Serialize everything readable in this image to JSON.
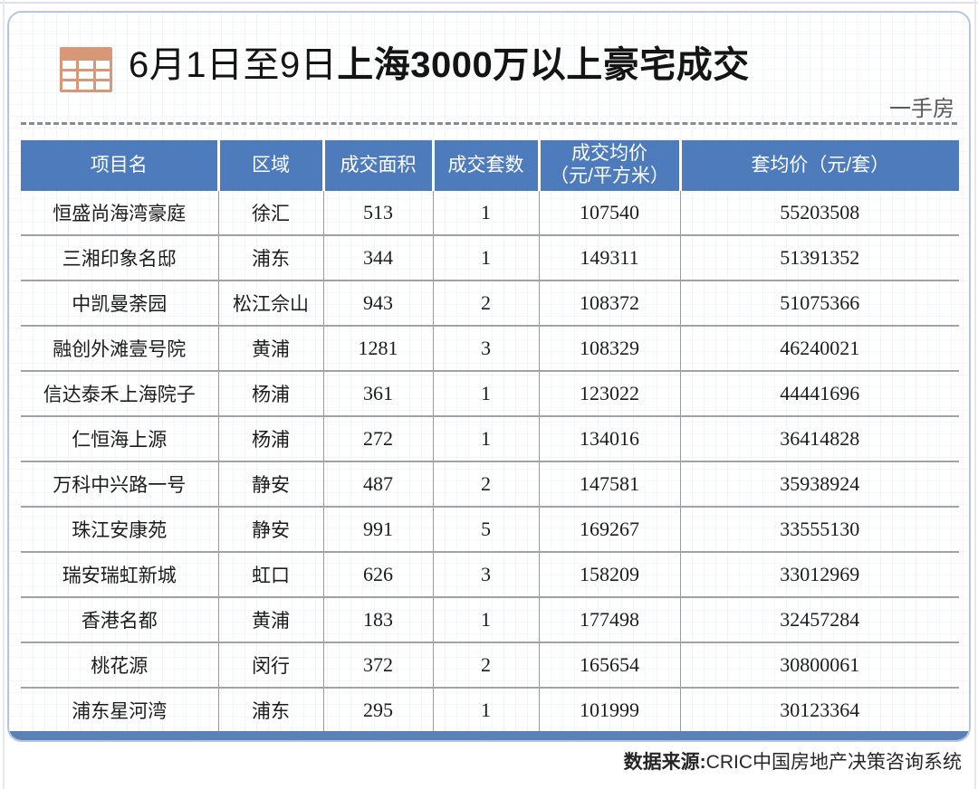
{
  "header": {
    "title_prefix": "6月1日至9日",
    "title_emphasis": "上海3000万以上豪宅成交",
    "tag": "一手房",
    "icon": "table-grid-icon"
  },
  "chart_data": {
    "type": "table",
    "title": "6月1日至9日上海3000万以上豪宅成交",
    "subtitle": "一手房",
    "columns": [
      "项目名",
      "区域",
      "成交面积",
      "成交套数",
      "成交均价\n（元/平方米）",
      "套均价（元/套）"
    ],
    "rows": [
      [
        "恒盛尚海湾豪庭",
        "徐汇",
        "513",
        "1",
        "107540",
        "55203508"
      ],
      [
        "三湘印象名邸",
        "浦东",
        "344",
        "1",
        "149311",
        "51391352"
      ],
      [
        "中凯曼荼园",
        "松江佘山",
        "943",
        "2",
        "108372",
        "51075366"
      ],
      [
        "融创外滩壹号院",
        "黄浦",
        "1281",
        "3",
        "108329",
        "46240021"
      ],
      [
        "信达泰禾上海院子",
        "杨浦",
        "361",
        "1",
        "123022",
        "44441696"
      ],
      [
        "仁恒海上源",
        "杨浦",
        "272",
        "1",
        "134016",
        "36414828"
      ],
      [
        "万科中兴路一号",
        "静安",
        "487",
        "2",
        "147581",
        "35938924"
      ],
      [
        "珠江安康苑",
        "静安",
        "991",
        "5",
        "169267",
        "33555130"
      ],
      [
        "瑞安瑞虹新城",
        "虹口",
        "626",
        "3",
        "158209",
        "33012969"
      ],
      [
        "香港名都",
        "黄浦",
        "183",
        "1",
        "177498",
        "32457284"
      ],
      [
        "桃花源",
        "闵行",
        "372",
        "2",
        "165654",
        "30800061"
      ],
      [
        "浦东星河湾",
        "浦东",
        "295",
        "1",
        "101999",
        "30123364"
      ]
    ]
  },
  "footer": {
    "source_label": "数据来源:",
    "source_value": "CRIC中国房地产决策咨询系统"
  },
  "colors": {
    "header_bg": "#4e7bbb",
    "accent_bar": "#5a82b7",
    "icon_coral": "#d79878",
    "grid_line": "#9a9a9a",
    "card_border": "#b6c6de"
  }
}
